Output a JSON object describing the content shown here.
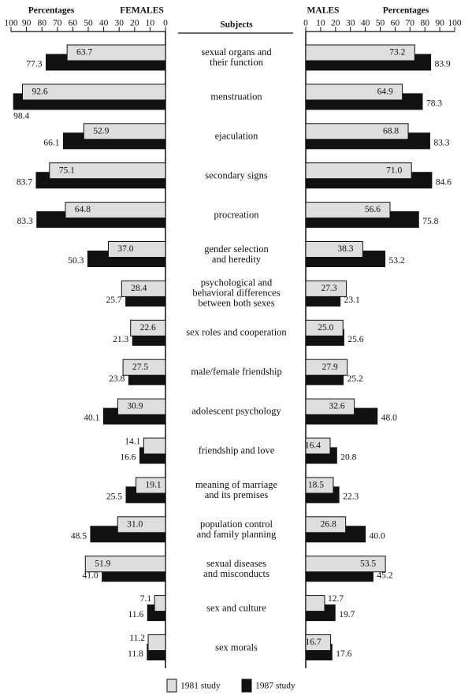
{
  "chart_data": {
    "type": "butterfly-bar",
    "category_header": "Subjects",
    "categories": [
      "sexual organs and\ntheir function",
      "menstruation",
      "ejaculation",
      "secondary signs",
      "procreation",
      "gender selection\nand heredity",
      "psychological and\nbehavioral differences\nbetween both sexes",
      "sex roles and cooperation",
      "male/female friendship",
      "adolescent psychology",
      "friendship and love",
      "meaning of marriage\nand its premises",
      "population control\nand family planning",
      "sexual diseases\nand misconducts",
      "sex and culture",
      "sex morals"
    ],
    "legend": [
      {
        "name": "1981 study",
        "color": "#dedede"
      },
      {
        "name": "1987 study",
        "color": "#111111"
      }
    ],
    "panels": [
      {
        "title": "FEMALES",
        "xlabel": "Percentages",
        "xlim": [
          0,
          100
        ],
        "xreversed": true,
        "xticks": [
          0,
          10,
          20,
          30,
          40,
          50,
          60,
          70,
          80,
          90,
          100
        ],
        "series": [
          {
            "values": [
              63.7,
              92.6,
              52.9,
              75.1,
              64.8,
              37.0,
              28.4,
              22.6,
              27.5,
              30.9,
              14.1,
              19.1,
              31.0,
              51.9,
              7.1,
              11.2
            ],
            "value_labels": [
              "63.7",
              "92.6",
              "52.9",
              "75.1",
              "64.8",
              "37.0",
              "28.4",
              "22.6",
              "27.5",
              "30.9",
              "14.1",
              "19.1",
              "31.0",
              "51.9",
              "7.1",
              "11.2"
            ]
          },
          {
            "values": [
              77.3,
              98.4,
              66.1,
              83.7,
              83.3,
              50.3,
              25.7,
              21.3,
              23.8,
              40.1,
              16.6,
              25.5,
              48.5,
              41.0,
              11.6,
              11.8
            ],
            "value_labels": [
              "77.3",
              "98.4",
              "66.1",
              "83.7",
              "83.3",
              "50.3",
              "25.7",
              "21.3",
              "23.8",
              "40.1",
              "16.6",
              "25.5",
              "48.5",
              "41.0",
              "11.6",
              "11.8"
            ]
          }
        ]
      },
      {
        "title": "MALES",
        "xlabel": "Percentages",
        "xlim": [
          0,
          100
        ],
        "xreversed": false,
        "xticks": [
          0,
          10,
          20,
          30,
          40,
          50,
          60,
          70,
          80,
          90,
          100
        ],
        "series": [
          {
            "values": [
              73.2,
              64.9,
              68.8,
              71.0,
              56.6,
              38.3,
              27.3,
              25.0,
              27.9,
              32.6,
              16.4,
              18.5,
              26.8,
              53.5,
              12.7,
              16.7
            ],
            "value_labels": [
              "73.2",
              "64.9",
              "68.8",
              "71.0",
              "56.6",
              "38.3",
              "27.3",
              "25.0",
              "27.9",
              "32.6",
              "16.4",
              "18.5",
              "26.8",
              "53.5",
              "12.7",
              "16.7"
            ]
          },
          {
            "values": [
              83.9,
              78.3,
              83.3,
              84.6,
              75.8,
              53.2,
              23.1,
              25.6,
              25.2,
              48.0,
              20.8,
              22.3,
              40.0,
              45.2,
              19.7,
              17.6
            ],
            "value_labels": [
              "83.9",
              "78.3",
              "83.3",
              "84.6",
              "75.8",
              "53.2",
              "23.1",
              "25.6",
              "25.2",
              "48.0",
              "20.8",
              "22.3",
              "40.0",
              "45.2",
              "19.7",
              "17.6"
            ]
          }
        ]
      }
    ]
  }
}
